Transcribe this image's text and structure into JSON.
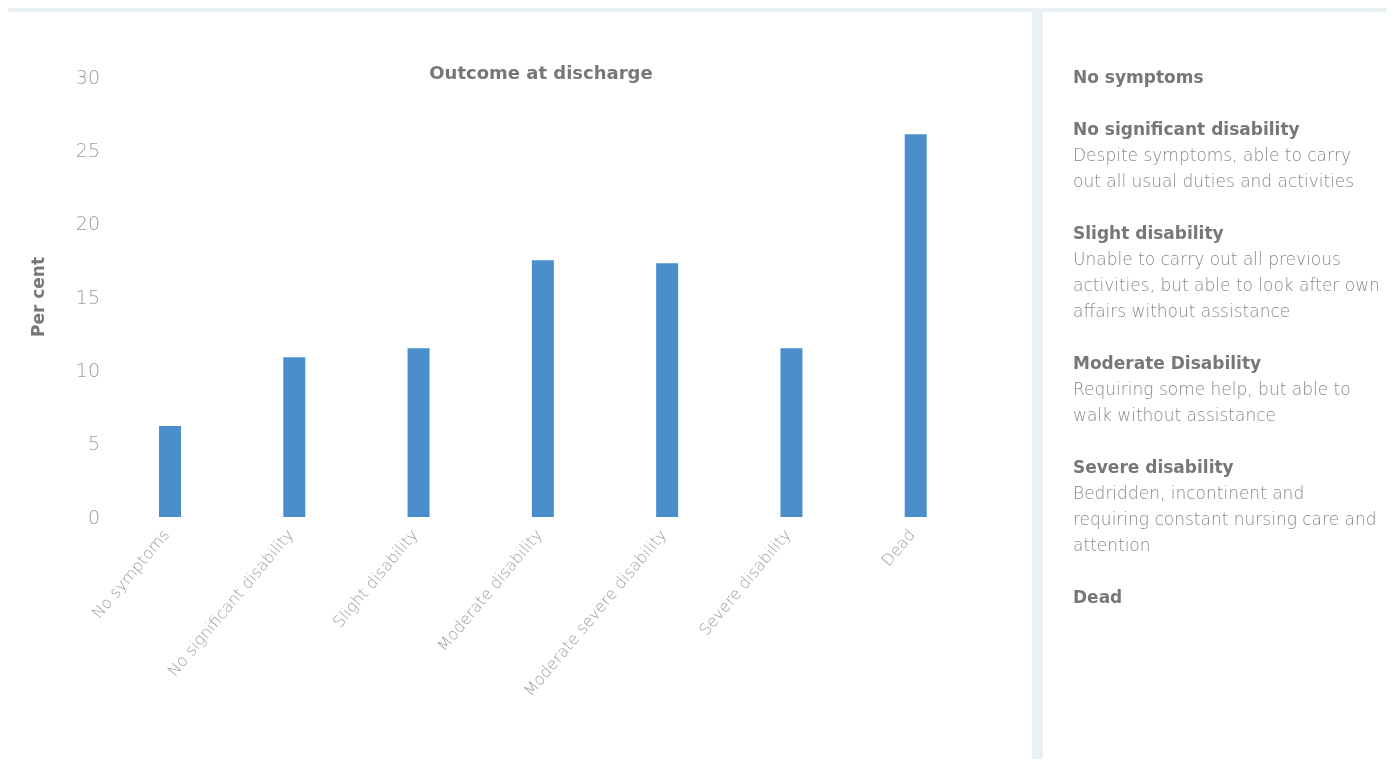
{
  "chart_data": {
    "type": "bar",
    "title": "Outcome at discharge",
    "ylabel": "Per cent",
    "categories": [
      "No symptoms",
      "No significant disability",
      "Slight disability",
      "Moderate disability",
      "Moderate severe disability",
      "Severe disability",
      "Dead"
    ],
    "values": [
      6.2,
      10.9,
      11.5,
      17.5,
      17.3,
      11.5,
      26.1
    ],
    "color": "#4a8fcc",
    "ylim": [
      0,
      30
    ],
    "yticks": [
      0,
      5,
      10,
      15,
      20,
      25,
      30
    ],
    "grid": false,
    "annotations": [
      "No symptoms",
      "No significant disability\nDespite symptoms, able to carry out all usual duties and activities",
      "Slight disability\nUnable to carry out all previous activities, but able to look after own affairs without assistance",
      "Moderate Disability\nRequiring some help, but able to walk without assistance",
      "Severe disability\nBedridden, incontinent and requiring constant nursing care and attention",
      "Dead"
    ]
  }
}
